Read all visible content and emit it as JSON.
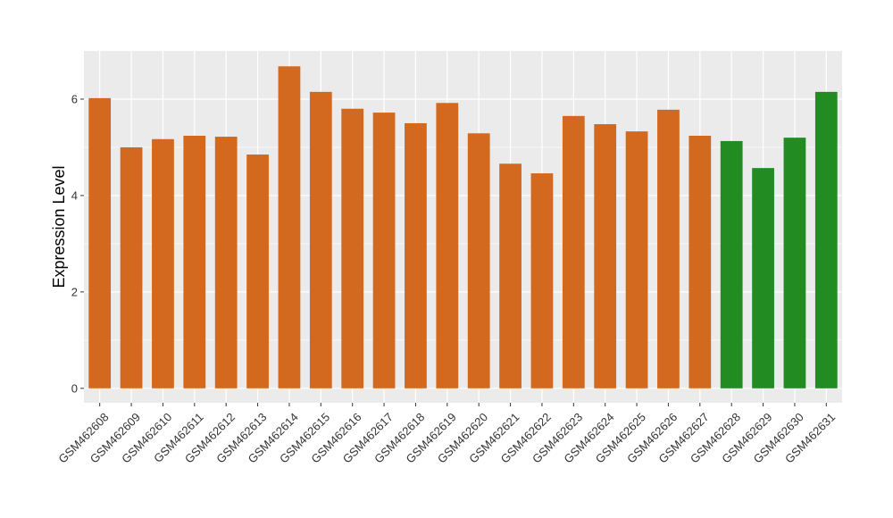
{
  "chart_data": {
    "type": "bar",
    "title": "",
    "xlabel": "",
    "ylabel": "Expression Level",
    "ylim": [
      -0.3,
      7.0
    ],
    "yticks": [
      0,
      2,
      4,
      6
    ],
    "grid": true,
    "legend": "none",
    "colors": {
      "group_a": "#D2691E",
      "group_b": "#228B22",
      "panel_bg": "#EBEBEB",
      "grid": "#FFFFFF"
    },
    "categories": [
      "GSM462608",
      "GSM462609",
      "GSM462610",
      "GSM462611",
      "GSM462612",
      "GSM462613",
      "GSM462614",
      "GSM462615",
      "GSM462616",
      "GSM462617",
      "GSM462618",
      "GSM462619",
      "GSM462620",
      "GSM462621",
      "GSM462622",
      "GSM462623",
      "GSM462624",
      "GSM462625",
      "GSM462626",
      "GSM462627",
      "GSM462628",
      "GSM462629",
      "GSM462630",
      "GSM462631"
    ],
    "values": [
      6.02,
      5.0,
      5.17,
      5.24,
      5.22,
      4.85,
      6.68,
      6.15,
      5.8,
      5.72,
      5.5,
      5.92,
      5.29,
      4.66,
      4.46,
      5.65,
      5.48,
      5.33,
      5.78,
      5.24,
      5.13,
      4.57,
      5.2,
      6.15
    ],
    "bar_colors": [
      "#D2691E",
      "#D2691E",
      "#D2691E",
      "#D2691E",
      "#D2691E",
      "#D2691E",
      "#D2691E",
      "#D2691E",
      "#D2691E",
      "#D2691E",
      "#D2691E",
      "#D2691E",
      "#D2691E",
      "#D2691E",
      "#D2691E",
      "#D2691E",
      "#D2691E",
      "#D2691E",
      "#D2691E",
      "#D2691E",
      "#228B22",
      "#228B22",
      "#228B22",
      "#228B22"
    ]
  }
}
